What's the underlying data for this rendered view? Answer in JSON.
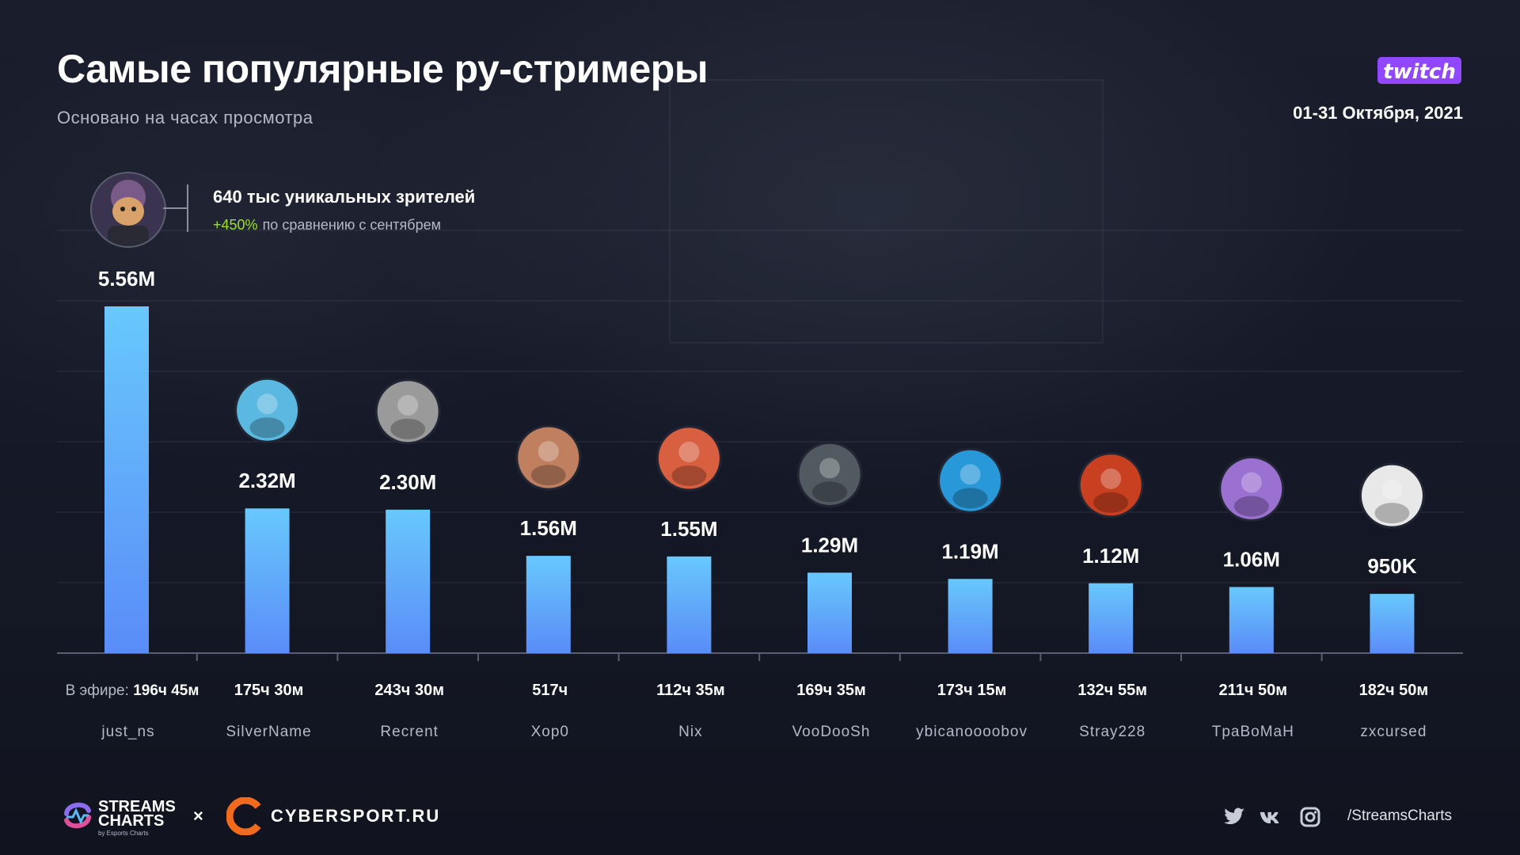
{
  "header": {
    "title": "Самые популярные ру-стримеры",
    "subtitle": "Основано на часах просмотра",
    "date_range": "01-31 Октября, 2021",
    "platform_logo": "twitch"
  },
  "highlight": {
    "avatar_icon": "streamer-avatar-icon",
    "main_text": "640 тыс уникальных зрителей",
    "change_pct": "+450%",
    "change_text": "по сравнению с сентябрем",
    "change_color": "#9be12b"
  },
  "chart_data": {
    "type": "bar",
    "title": "Самые популярные ру-стримеры",
    "subtitle": "Основано на часах просмотра",
    "categories": [
      "just_ns",
      "SilverName",
      "Recrent",
      "Xop0",
      "Nix",
      "VooDooSh",
      "ybicanoooobov",
      "Stray228",
      "TpaBoMaH",
      "zxcursed"
    ],
    "values": [
      5560000,
      2320000,
      2300000,
      1560000,
      1550000,
      1290000,
      1190000,
      1120000,
      1060000,
      950000
    ],
    "value_labels": [
      "5.56M",
      "2.32M",
      "2.30M",
      "1.56M",
      "1.55M",
      "1.29M",
      "1.19M",
      "1.12M",
      "1.06M",
      "950K"
    ],
    "air_time_label": "В эфире:",
    "air_times": [
      "196ч 45м",
      "175ч 30м",
      "243ч 30м",
      "517ч",
      "112ч 35м",
      "169ч 35м",
      "173ч 15м",
      "132ч 55м",
      "211ч 50м",
      "182ч 50м"
    ],
    "bar_color_top": "#68c8fc",
    "bar_color_bottom": "#5a8cf8",
    "avatar_colors": [
      "#4a3f5c",
      "#5bb8e0",
      "#9a9a9a",
      "#c08060",
      "#d86040",
      "#505a60",
      "#2898d8",
      "#c84020",
      "#9a70d0",
      "#e8e8e8"
    ],
    "ylim": [
      0,
      5560000
    ],
    "grid": true
  },
  "footer": {
    "streams_charts_line1": "STREAMS",
    "streams_charts_line2": "CHARTS",
    "streams_charts_by": "by Esports Charts",
    "times_sign": "×",
    "partner": "CYBERSPORT.RU",
    "social_icons": [
      "twitter-icon",
      "vk-icon",
      "instagram-icon"
    ],
    "handle": "/StreamsCharts"
  }
}
